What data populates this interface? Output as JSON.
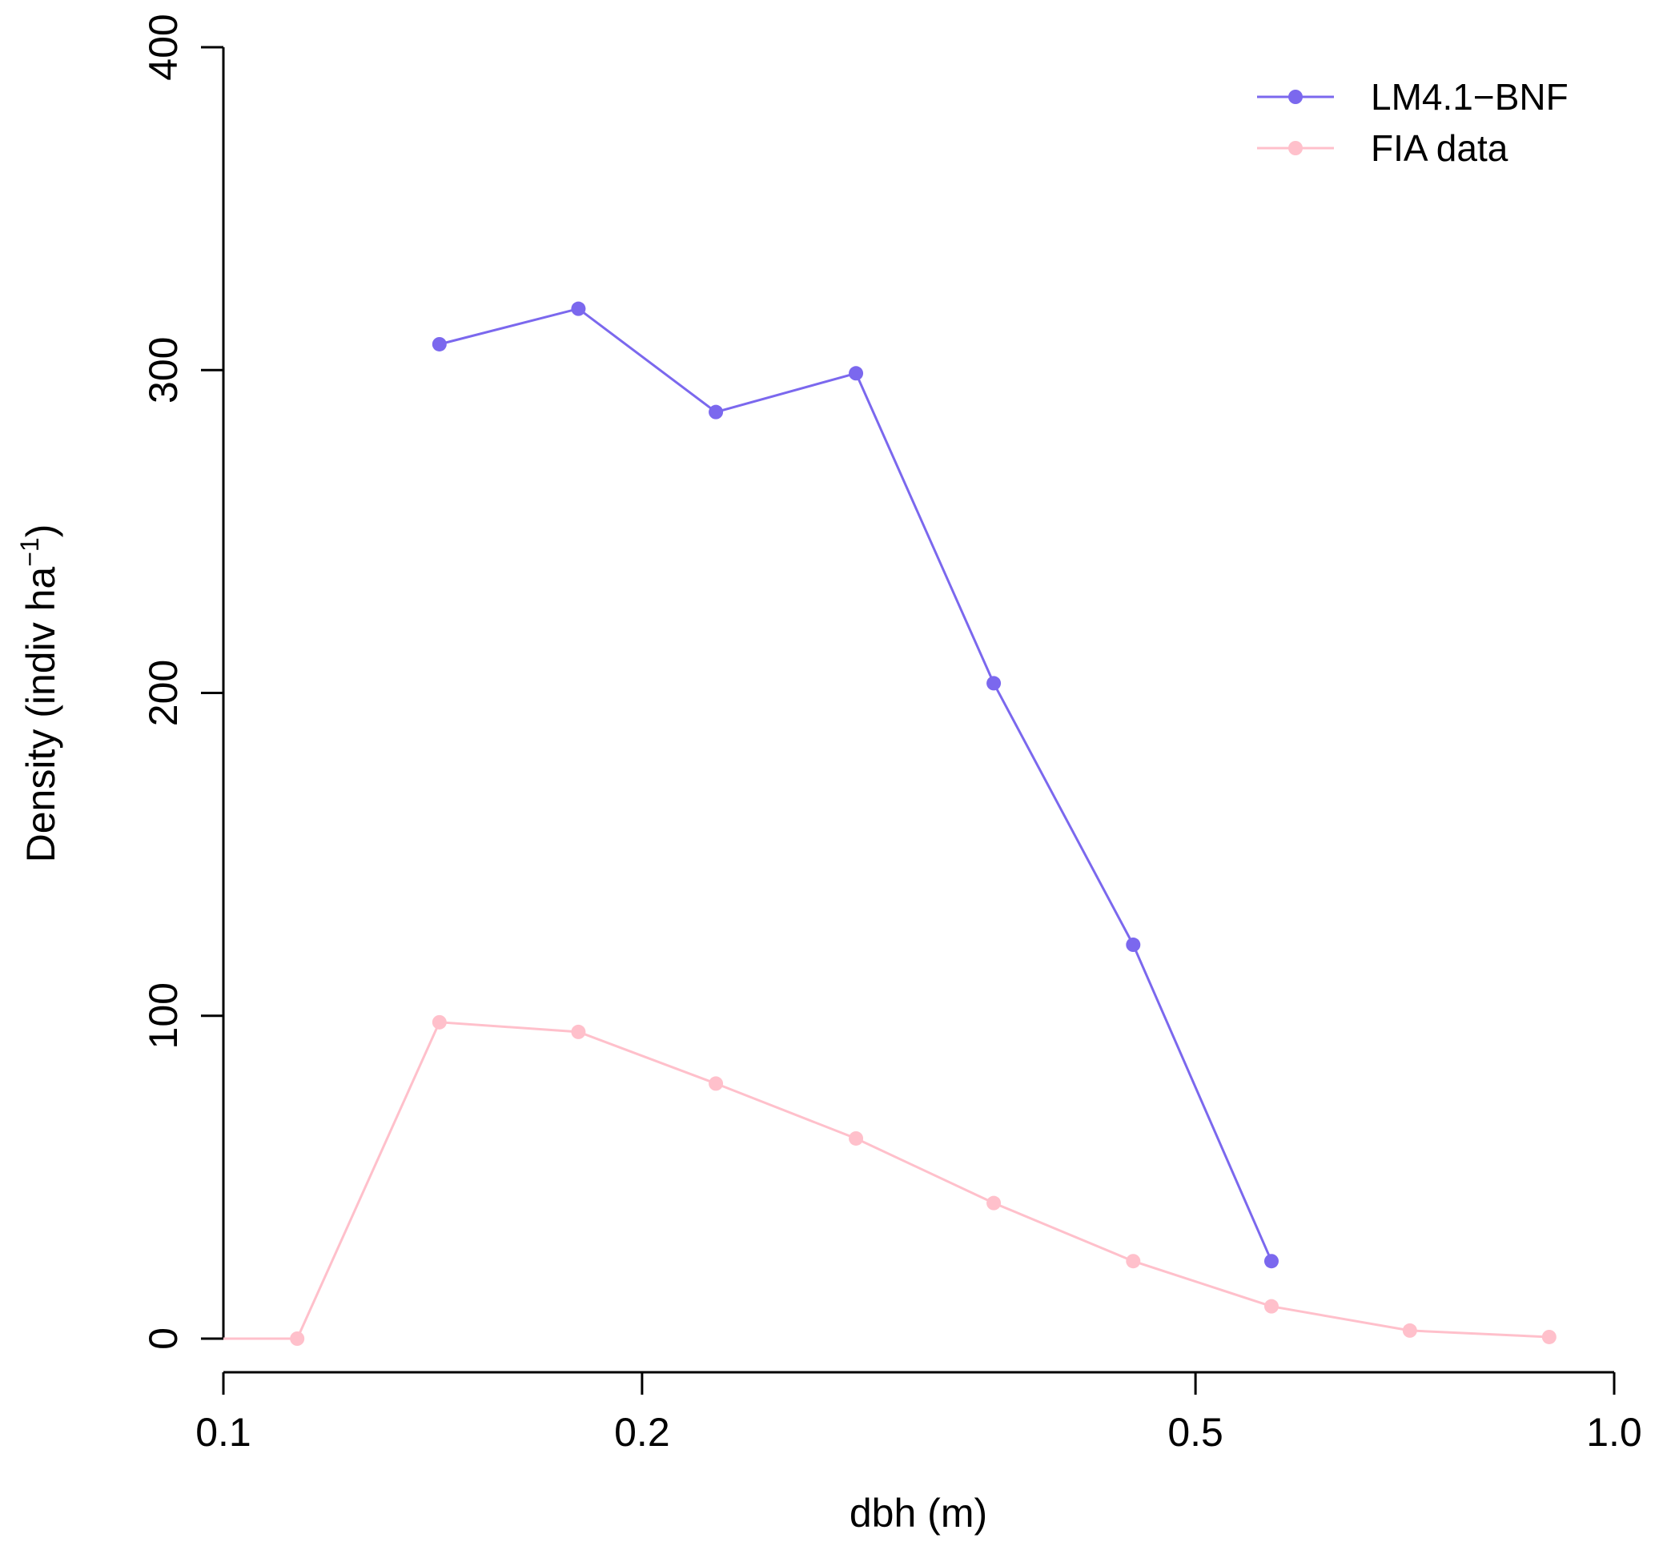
{
  "chart_data": {
    "type": "line",
    "title": "",
    "xlabel": "dbh (m)",
    "ylabel": {
      "text": "Density (indiv ha",
      "superscript": "−1",
      "close": ")"
    },
    "x_scale": "log",
    "xlim": [
      0.1,
      1.0
    ],
    "ylim": [
      0,
      400
    ],
    "x_ticks": [
      {
        "value": 0.1,
        "label": "0.1"
      },
      {
        "value": 0.2,
        "label": "0.2"
      },
      {
        "value": 0.5,
        "label": "0.5"
      },
      {
        "value": 1.0,
        "label": "1.0"
      }
    ],
    "y_ticks": [
      {
        "value": 0,
        "label": "0"
      },
      {
        "value": 100,
        "label": "100"
      },
      {
        "value": 200,
        "label": "200"
      },
      {
        "value": 300,
        "label": "300"
      },
      {
        "value": 400,
        "label": "400"
      }
    ],
    "grid": false,
    "legend_position": "top-right",
    "series": [
      {
        "name": "LM4.1−BNF",
        "color": "#7B68EE",
        "markers": true,
        "x": [
          0.143,
          0.18,
          0.226,
          0.285,
          0.358,
          0.451,
          0.567
        ],
        "y": [
          308,
          319,
          287,
          299,
          203,
          122,
          24
        ]
      },
      {
        "name": "FIA data",
        "color": "#FFC0CB",
        "markers": true,
        "marker_from_index": 1,
        "x": [
          0.1,
          0.113,
          0.143,
          0.18,
          0.226,
          0.285,
          0.358,
          0.451,
          0.567,
          0.713,
          0.898
        ],
        "y": [
          0,
          0,
          98,
          95,
          79,
          62,
          42,
          24,
          10,
          2.5,
          0.5
        ]
      }
    ]
  }
}
